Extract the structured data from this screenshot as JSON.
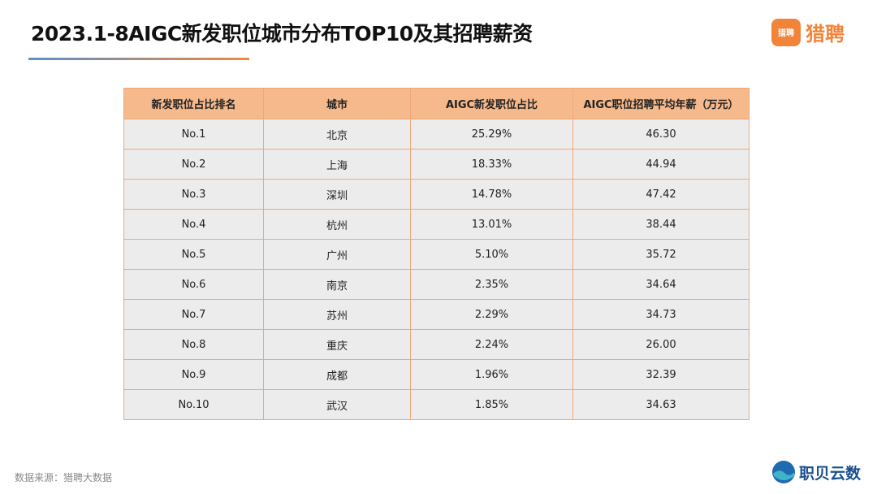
{
  "header": {
    "title": "2023.1-8AIGC新发职位城市分布TOP10及其招聘薪资",
    "logo": "猎聘"
  },
  "table": {
    "columns": [
      "新发职位占比排名",
      "城市",
      "AIGC新发职位占比",
      "AIGC职位招聘平均年薪（万元）"
    ],
    "rows": [
      [
        "No.1",
        "北京",
        "25.29%",
        "46.30"
      ],
      [
        "No.2",
        "上海",
        "18.33%",
        "44.94"
      ],
      [
        "No.3",
        "深圳",
        "14.78%",
        "47.42"
      ],
      [
        "No.4",
        "杭州",
        "13.01%",
        "38.44"
      ],
      [
        "No.5",
        "广州",
        "5.10%",
        "35.72"
      ],
      [
        "No.6",
        "南京",
        "2.35%",
        "34.64"
      ],
      [
        "No.7",
        "苏州",
        "2.29%",
        "34.73"
      ],
      [
        "No.8",
        "重庆",
        "2.24%",
        "26.00"
      ],
      [
        "No.9",
        "成都",
        "1.96%",
        "32.39"
      ],
      [
        "No.10",
        "武汉",
        "1.85%",
        "34.63"
      ]
    ]
  },
  "footer": {
    "source": "数据来源：猎聘大数据",
    "brand": "职贝云数"
  }
}
